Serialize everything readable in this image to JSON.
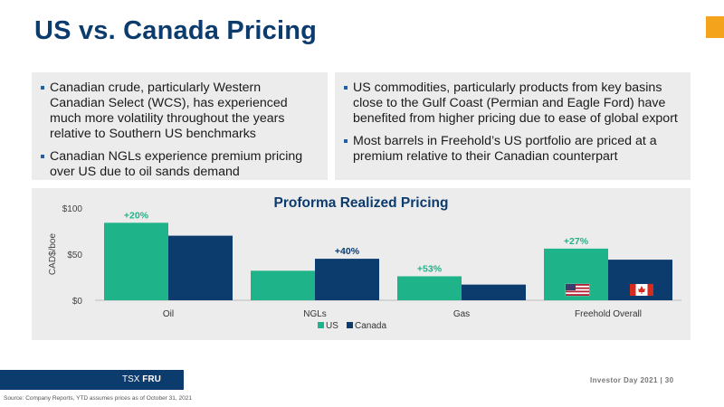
{
  "slide": {
    "title": "US vs. Canada Pricing",
    "left_bullets": [
      "Canadian crude, particularly Western Canadian Select (WCS), has experienced much more volatility throughout the years relative to Southern US benchmarks",
      "Canadian NGLs experience premium pricing over US due to oil sands demand"
    ],
    "right_bullets": [
      "US commodities, particularly products from key basins close to the Gulf Coast (Permian and Eagle Ford) have benefited from higher pricing due to ease of global export",
      "Most barrels in Freehold’s US portfolio are priced at a premium relative to their Canadian counterpart"
    ],
    "footer_ticker_prefix": "TSX ",
    "footer_ticker": "FRU",
    "footer_right": "Investor Day 2021 | 30",
    "source": "Source: Company Reports, YTD assumes prices as of October 31, 2021"
  },
  "colors": {
    "title": "#0c3b6d",
    "accent": "#f4a41c",
    "us": "#1fb389",
    "canada": "#0c3b6d",
    "us_label": "#1fb389",
    "canada_label": "#0c3b6d",
    "panel": "#ececec"
  },
  "chart_data": {
    "type": "bar",
    "title": "Proforma Realized Pricing",
    "ylabel": "CAD$/boe",
    "xlabel": "",
    "ylim": [
      0,
      100
    ],
    "yticks": [
      "$0",
      "$50",
      "$100"
    ],
    "ytick_values": [
      0,
      50,
      100
    ],
    "grid": false,
    "legend_position": "bottom-center",
    "categories": [
      "Oil",
      "NGLs",
      "Gas",
      "Freehold Overall"
    ],
    "series": [
      {
        "name": "US",
        "values": [
          84,
          32,
          26,
          56
        ]
      },
      {
        "name": "Canada",
        "values": [
          70,
          45,
          17,
          44
        ]
      }
    ],
    "annotations": [
      {
        "category": "Oil",
        "text": "+20%",
        "series": "US"
      },
      {
        "category": "NGLs",
        "text": "+40%",
        "series": "Canada"
      },
      {
        "category": "Gas",
        "text": "+53%",
        "series": "US"
      },
      {
        "category": "Freehold Overall",
        "text": "+27%",
        "series": "US"
      }
    ],
    "flag_icons": [
      "us-flag-icon",
      "canada-flag-icon"
    ]
  }
}
